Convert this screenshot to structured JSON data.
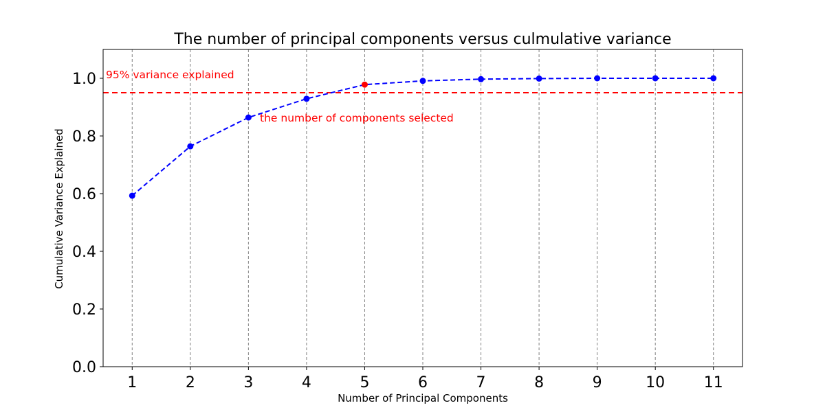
{
  "chart_data": {
    "type": "line",
    "title": "The number of principal components versus culmulative variance",
    "xlabel": "Number of Principal Components",
    "ylabel": "Cumulative Variance Explained",
    "x": [
      1,
      2,
      3,
      4,
      5,
      6,
      7,
      8,
      9,
      10,
      11
    ],
    "series": [
      {
        "values": [
          0.593,
          0.764,
          0.864,
          0.929,
          0.978,
          0.991,
          0.997,
          0.999,
          1.0,
          1.0,
          1.0
        ],
        "color": "#0000ff",
        "line_style": "dashed",
        "marker": "circle"
      }
    ],
    "xlim": [
      0.5,
      11.5
    ],
    "ylim": [
      0.0,
      1.1
    ],
    "xticks": [
      1,
      2,
      3,
      4,
      5,
      6,
      7,
      8,
      9,
      10,
      11
    ],
    "yticks": [
      0.0,
      0.2,
      0.4,
      0.6,
      0.8,
      1.0
    ],
    "ytick_labels": [
      "0.0",
      "0.2",
      "0.4",
      "0.6",
      "0.8",
      "1.0"
    ],
    "grid": "x-only-dashed",
    "threshold": {
      "value": 0.95,
      "color": "#ff0000",
      "line_style": "dashed",
      "label": "95% variance explained"
    },
    "highlight": {
      "x": 5,
      "value": 0.978,
      "color": "#ff0000",
      "label": "the number of components selected"
    },
    "legend": "none"
  }
}
